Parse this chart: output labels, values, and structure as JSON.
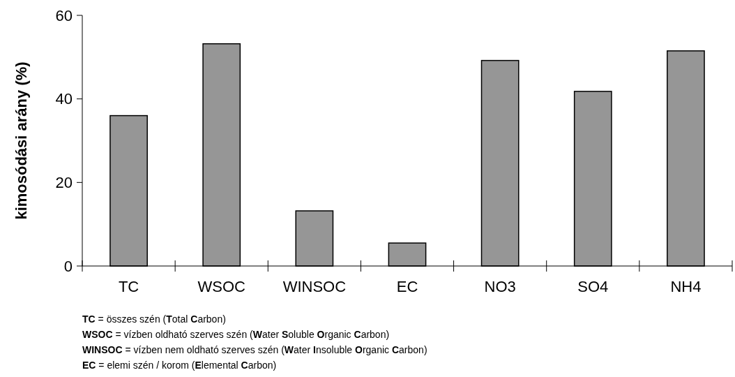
{
  "chart_data": {
    "type": "bar",
    "ylabel": "kimosódási arány (%)",
    "categories": [
      "TC",
      "WSOC",
      "WINSOC",
      "EC",
      "NO3",
      "SO4",
      "NH4"
    ],
    "values": [
      36.0,
      53.2,
      13.2,
      5.5,
      49.2,
      41.8,
      51.5
    ],
    "color": "#969696",
    "ylim": [
      0,
      60
    ],
    "yticks": [
      0,
      20,
      40,
      60
    ],
    "grid": false,
    "annotations": [
      "TC = összes szén (Total Carbon)",
      "WSOC = vízben oldható szerves szén (Water Soluble Organic Carbon)",
      "WINSOC = vízben nem oldható szerves szén (Water Insoluble Organic Carbon)",
      "EC = elemi szén / korom (Elemental Carbon)"
    ]
  }
}
